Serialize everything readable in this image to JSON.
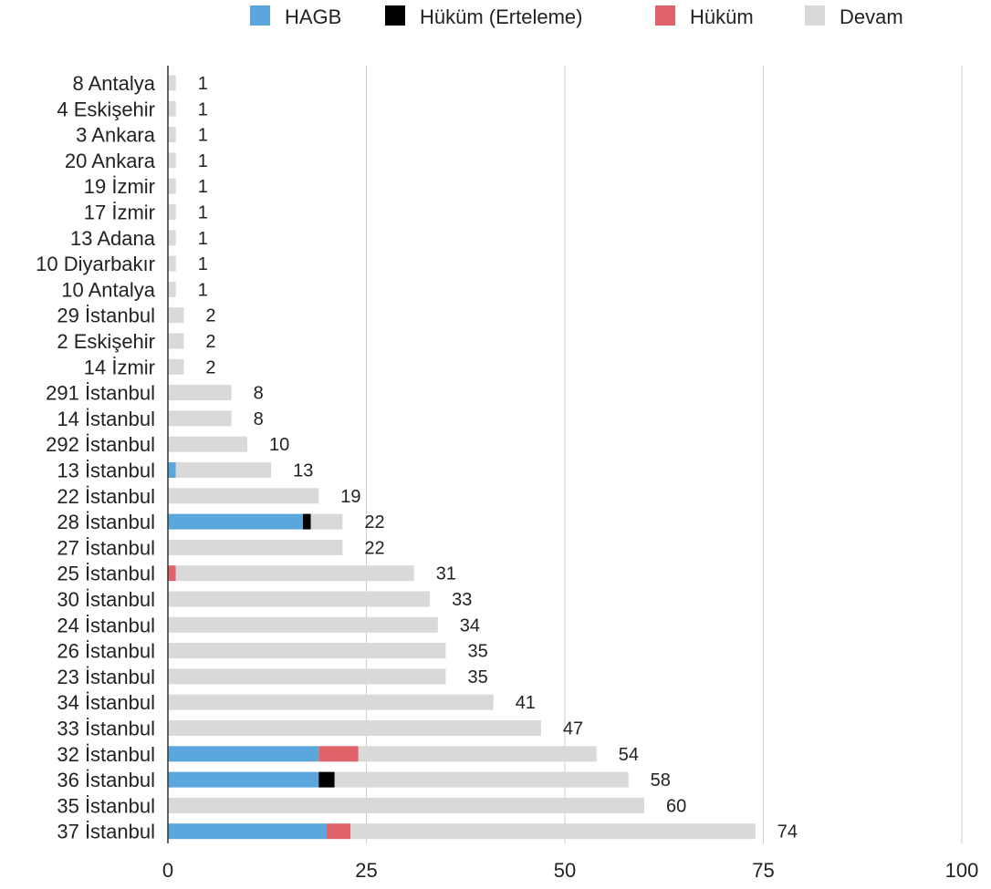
{
  "chart_data": {
    "type": "bar",
    "orientation": "horizontal",
    "stacked": true,
    "legend_position": "top",
    "xlim": [
      0,
      100
    ],
    "x_ticks": [
      0,
      25,
      50,
      75,
      100
    ],
    "grid": true,
    "categories": [
      "8 Antalya",
      "4 Eskişehir",
      "3 Ankara",
      "20 Ankara",
      "19 İzmir",
      "17 İzmir",
      "13 Adana",
      "10 Diyarbakır",
      "10 Antalya",
      "29 İstanbul",
      "2 Eskişehir",
      "14 İzmir",
      "291 İstanbul",
      "14 İstanbul",
      "292 İstanbul",
      "13 İstanbul",
      "22 İstanbul",
      "28 İstanbul",
      "27 İstanbul",
      "25 İstanbul",
      "30 İstanbul",
      "24 İstanbul",
      "26 İstanbul",
      "23 İstanbul",
      "34 İstanbul",
      "33 İstanbul",
      "32 İstanbul",
      "36 İstanbul",
      "35 İstanbul",
      "37 İstanbul"
    ],
    "series": [
      {
        "name": "HAGB",
        "color": "#5ba6dc",
        "values": [
          0,
          0,
          0,
          0,
          0,
          0,
          0,
          0,
          0,
          0,
          0,
          0,
          0,
          0,
          0,
          1,
          0,
          17,
          0,
          0,
          0,
          0,
          0,
          0,
          0,
          0,
          19,
          19,
          0,
          20
        ]
      },
      {
        "name": "Hüküm (Erteleme)",
        "color": "#000000",
        "values": [
          0,
          0,
          0,
          0,
          0,
          0,
          0,
          0,
          0,
          0,
          0,
          0,
          0,
          0,
          0,
          0,
          0,
          1,
          0,
          0,
          0,
          0,
          0,
          0,
          0,
          0,
          0,
          2,
          0,
          0
        ]
      },
      {
        "name": "Hüküm",
        "color": "#e0636a",
        "values": [
          0,
          0,
          0,
          0,
          0,
          0,
          0,
          0,
          0,
          0,
          0,
          0,
          0,
          0,
          0,
          0,
          0,
          0,
          0,
          1,
          0,
          0,
          0,
          0,
          0,
          0,
          5,
          0,
          0,
          3
        ]
      },
      {
        "name": "Devam",
        "color": "#d9d9d9",
        "values": [
          1,
          1,
          1,
          1,
          1,
          1,
          1,
          1,
          1,
          2,
          2,
          2,
          8,
          8,
          10,
          12,
          19,
          4,
          22,
          30,
          33,
          34,
          35,
          35,
          41,
          47,
          30,
          37,
          60,
          51
        ]
      }
    ],
    "totals": [
      "1",
      "1",
      "1",
      "1",
      "1",
      "1",
      "1",
      "1",
      "1",
      "2",
      "2",
      "2",
      "8",
      "8",
      "10",
      "13",
      "19",
      "22",
      "22",
      "31",
      "33",
      "34",
      "35",
      "35",
      "41",
      "47",
      "54",
      "58",
      "60",
      "74"
    ]
  }
}
